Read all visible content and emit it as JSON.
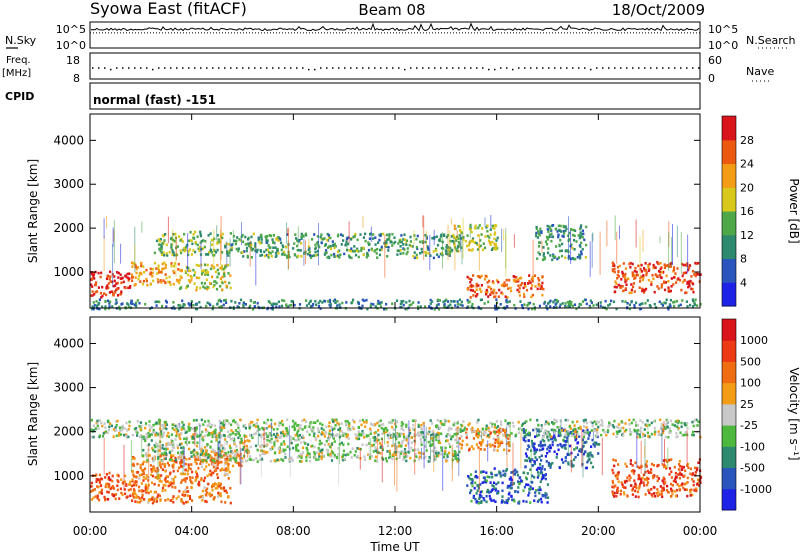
{
  "header": {
    "title_left": "Syowa East (fitACF)",
    "title_center": "Beam 08",
    "title_right": "18/Oct/2009"
  },
  "chart_data": [
    {
      "type": "line",
      "panel": "noise",
      "left_label": "N.Sky",
      "right_label": "N.Search",
      "left_ticks": [
        "10^5",
        "10^0"
      ],
      "right_ticks": [
        "10^5",
        "10^0"
      ],
      "scale": "log",
      "xlim": [
        "00:00",
        "24:00"
      ],
      "series": [
        {
          "name": "N.Sky",
          "style": "solid",
          "level": 0.72
        },
        {
          "name": "N.Search",
          "style": "dotted",
          "level": 0.58
        }
      ]
    },
    {
      "type": "scatter",
      "panel": "frequency",
      "left_label": "Freq.",
      "left_unit": "[MHz]",
      "left_ticks": [
        18,
        8
      ],
      "right_label": "Nave",
      "right_ticks": [
        60,
        0
      ],
      "ylim": [
        8,
        18
      ],
      "series": [
        {
          "name": "Freq.",
          "style": "dotted",
          "value": 12.5
        }
      ]
    },
    {
      "type": "table",
      "panel": "cpid",
      "label": "CPID",
      "value": "normal (fast) -151"
    },
    {
      "type": "heatmap",
      "panel": "power",
      "ylabel": "Slant Range [km]",
      "ylim": [
        180,
        4600
      ],
      "yticks": [
        1000,
        2000,
        3000,
        4000
      ],
      "xlim": [
        0,
        24
      ],
      "colorbar": {
        "label": "Power [dB]",
        "range": [
          0,
          32
        ],
        "ticks": [
          "4",
          "8",
          "12",
          "16",
          "20",
          "24",
          "28"
        ],
        "colors": [
          "#1e22e6",
          "#2a55bd",
          "#2e8a6e",
          "#4ea84a",
          "#d8c81c",
          "#f39c16",
          "#ec5a12",
          "#d9141a"
        ]
      },
      "regions": [
        {
          "t": [
            0.0,
            1.6
          ],
          "r": [
            450,
            1050
          ],
          "level": 0.93
        },
        {
          "t": [
            1.6,
            3.6
          ],
          "r": [
            700,
            1250
          ],
          "level": 0.7
        },
        {
          "t": [
            3.5,
            5.5
          ],
          "r": [
            600,
            1200
          ],
          "level": 0.55
        },
        {
          "t": [
            2.5,
            5.5
          ],
          "r": [
            1400,
            1950
          ],
          "level": 0.42
        },
        {
          "t": [
            5.5,
            14.5
          ],
          "r": [
            1350,
            1900
          ],
          "level": 0.38
        },
        {
          "t": [
            14.2,
            16.0
          ],
          "r": [
            1500,
            2100
          ],
          "level": 0.5
        },
        {
          "t": [
            14.8,
            17.8
          ],
          "r": [
            450,
            950
          ],
          "level": 0.82
        },
        {
          "t": [
            17.5,
            19.5
          ],
          "r": [
            1300,
            2100
          ],
          "level": 0.35
        },
        {
          "t": [
            20.5,
            24.0
          ],
          "r": [
            550,
            1250
          ],
          "level": 0.85
        },
        {
          "t": [
            0.0,
            24.0
          ],
          "r": [
            180,
            400
          ],
          "level": 0.3
        }
      ]
    },
    {
      "type": "heatmap",
      "panel": "velocity",
      "ylabel": "Slant Range [km]",
      "ylim": [
        180,
        4600
      ],
      "yticks": [
        1000,
        2000,
        3000,
        4000
      ],
      "xlim": [
        0,
        24
      ],
      "xticks": [
        "00:00",
        "04:00",
        "08:00",
        "12:00",
        "16:00",
        "20:00",
        "00:00"
      ],
      "xlabel": "Time UT",
      "colorbar": {
        "label": "Velocity [m s⁻¹]",
        "range": [
          -1200,
          1200
        ],
        "ticks": [
          "1000",
          "500",
          "100",
          "25",
          "-25",
          "-100",
          "-500",
          "-1000"
        ],
        "colors": [
          "#1e22e6",
          "#2a55bd",
          "#2e8a6e",
          "#4eb83e",
          "#c8c8c8",
          "#f39c16",
          "#f06c12",
          "#ec3a14",
          "#d9141a"
        ]
      },
      "regions": [
        {
          "t": [
            0.0,
            1.8
          ],
          "r": [
            450,
            1100
          ],
          "level": 0.75
        },
        {
          "t": [
            1.6,
            5.5
          ],
          "r": [
            400,
            1500
          ],
          "level": 0.7
        },
        {
          "t": [
            4.0,
            6.0
          ],
          "r": [
            1250,
            1600
          ],
          "level": 0.65
        },
        {
          "t": [
            2.0,
            14.5
          ],
          "r": [
            1350,
            2000
          ],
          "level": 0.45
        },
        {
          "t": [
            14.5,
            16.5
          ],
          "r": [
            1600,
            2100
          ],
          "level": 0.68
        },
        {
          "t": [
            14.8,
            18.0
          ],
          "r": [
            400,
            1200
          ],
          "level": 0.2
        },
        {
          "t": [
            17.0,
            20.0
          ],
          "r": [
            1200,
            2100
          ],
          "level": 0.18
        },
        {
          "t": [
            20.5,
            24.0
          ],
          "r": [
            550,
            1400
          ],
          "level": 0.8
        },
        {
          "t": [
            0.0,
            24.0
          ],
          "r": [
            1900,
            2300
          ],
          "level": 0.45
        }
      ]
    }
  ]
}
